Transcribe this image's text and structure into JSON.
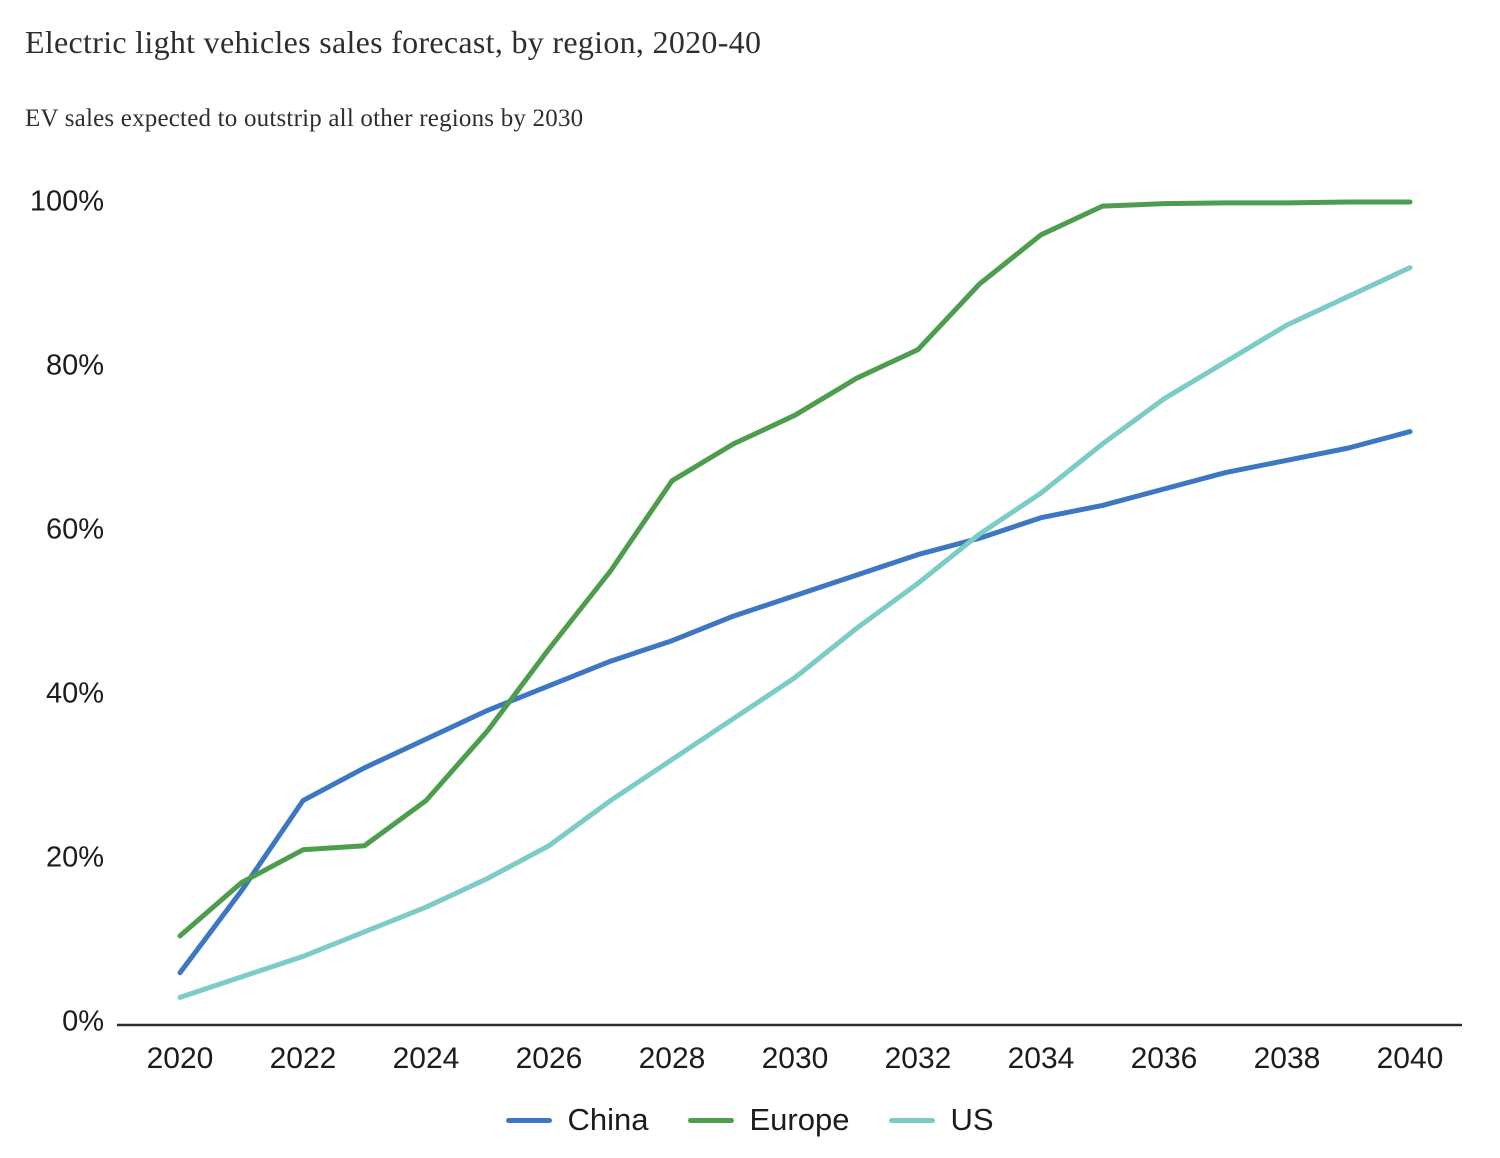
{
  "header": {
    "title": "Electric light vehicles sales forecast, by region, 2020-40",
    "subtitle": "EV sales expected to outstrip all other regions by 2030"
  },
  "chart_data": {
    "type": "line",
    "title": "Electric light vehicles sales forecast, by region, 2020-40",
    "subtitle": "EV sales expected to outstrip all other regions by 2030",
    "xlabel": "",
    "ylabel": "",
    "x": [
      2020,
      2021,
      2022,
      2023,
      2024,
      2025,
      2026,
      2027,
      2028,
      2029,
      2030,
      2031,
      2032,
      2033,
      2034,
      2035,
      2036,
      2037,
      2038,
      2039,
      2040
    ],
    "series": [
      {
        "name": "China",
        "color": "#3d76c2",
        "values": [
          6,
          16,
          27,
          31,
          34.5,
          38,
          41,
          44,
          46.5,
          49.5,
          52,
          54.5,
          57,
          59,
          61.5,
          63,
          65,
          67,
          68.5,
          70,
          72
        ]
      },
      {
        "name": "Europe",
        "color": "#4e9c4e",
        "values": [
          10.5,
          17,
          21,
          21.5,
          27,
          35.5,
          45.5,
          55,
          66,
          70.5,
          74,
          78.5,
          82,
          90,
          96,
          99.5,
          99.8,
          99.9,
          99.9,
          100,
          100
        ]
      },
      {
        "name": "US",
        "color": "#7bcbc6",
        "values": [
          3,
          5.5,
          8,
          11,
          14,
          17.5,
          21.5,
          27,
          32,
          37,
          42,
          48,
          53.5,
          59.5,
          64.5,
          70.5,
          76,
          80.5,
          85,
          88.5,
          92
        ]
      }
    ],
    "ylim": [
      0,
      100
    ],
    "y_ticks": [
      {
        "value": 0,
        "label": "0%"
      },
      {
        "value": 20,
        "label": "20%"
      },
      {
        "value": 40,
        "label": "40%"
      },
      {
        "value": 60,
        "label": "60%"
      },
      {
        "value": 80,
        "label": "80%"
      },
      {
        "value": 100,
        "label": "100%"
      }
    ],
    "x_ticks": [
      2020,
      2022,
      2024,
      2026,
      2028,
      2030,
      2032,
      2034,
      2036,
      2038,
      2040
    ],
    "grid": false,
    "legend_position": "bottom-center",
    "unit": "percent"
  },
  "colors": {
    "background": "#ffffff",
    "text": "#2e2e2e",
    "tick_text": "#1c1c1c",
    "axis_line": "#2e2e2e"
  }
}
